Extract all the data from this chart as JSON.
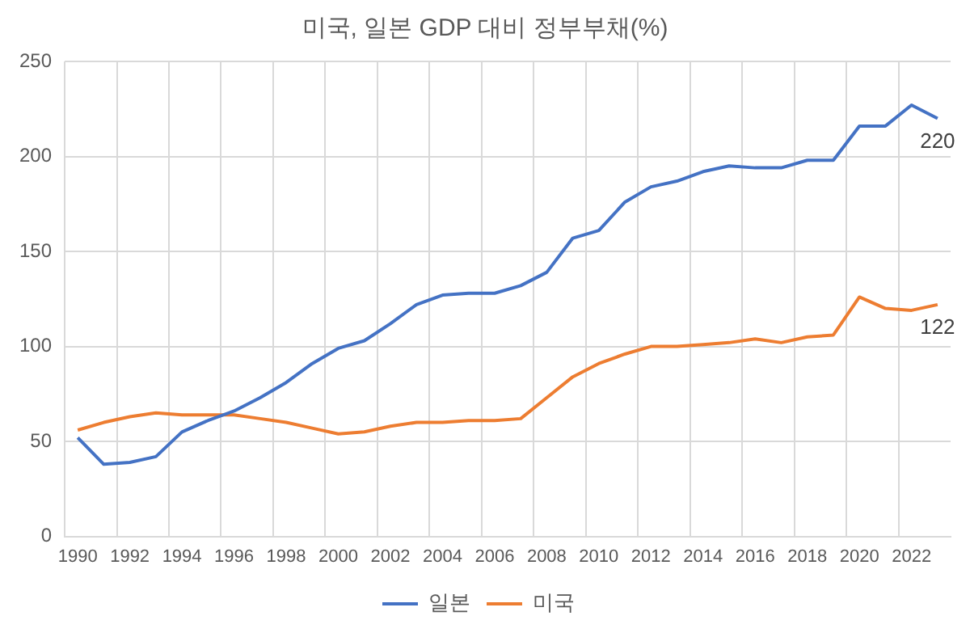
{
  "chart_data": {
    "type": "line",
    "title": "미국, 일본 GDP 대비 정부부채(%)",
    "categories": [
      "1990",
      null,
      "1992",
      null,
      "1994",
      null,
      "1996",
      null,
      "1998",
      null,
      "2000",
      null,
      "2002",
      null,
      "2004",
      null,
      "2006",
      null,
      "2008",
      null,
      "2010",
      null,
      "2012",
      null,
      "2014",
      null,
      "2016",
      null,
      "2018",
      null,
      "2020",
      null,
      "2022",
      null
    ],
    "series": [
      {
        "name": "일본",
        "color": "#4472c4",
        "values": [
          52,
          38,
          39,
          42,
          55,
          61,
          66,
          73,
          81,
          91,
          99,
          103,
          112,
          122,
          127,
          128,
          128,
          132,
          139,
          157,
          161,
          176,
          184,
          187,
          192,
          195,
          194,
          194,
          198,
          198,
          216,
          216,
          227,
          220
        ],
        "value_labels": [
          null,
          null,
          null,
          null,
          null,
          null,
          null,
          null,
          null,
          null,
          null,
          null,
          null,
          null,
          null,
          null,
          null,
          null,
          null,
          null,
          null,
          null,
          null,
          null,
          null,
          null,
          null,
          null,
          null,
          null,
          null,
          null,
          null,
          "220"
        ]
      },
      {
        "name": "미국",
        "color": "#ed7d31",
        "values": [
          56,
          60,
          63,
          65,
          64,
          64,
          64,
          62,
          60,
          57,
          54,
          55,
          58,
          60,
          60,
          61,
          61,
          62,
          73,
          84,
          91,
          96,
          100,
          100,
          101,
          102,
          104,
          102,
          105,
          106,
          126,
          120,
          119,
          122
        ],
        "value_labels": [
          null,
          null,
          null,
          null,
          null,
          null,
          null,
          null,
          null,
          null,
          null,
          null,
          null,
          null,
          null,
          null,
          null,
          null,
          null,
          null,
          null,
          null,
          null,
          null,
          null,
          null,
          null,
          null,
          null,
          null,
          null,
          null,
          null,
          "122"
        ]
      }
    ],
    "ylim": [
      0,
      250
    ],
    "yticks": [
      0,
      50,
      100,
      150,
      200,
      250
    ],
    "grid": true,
    "legend": "bottom",
    "marker": "none",
    "line_style": "solid"
  }
}
